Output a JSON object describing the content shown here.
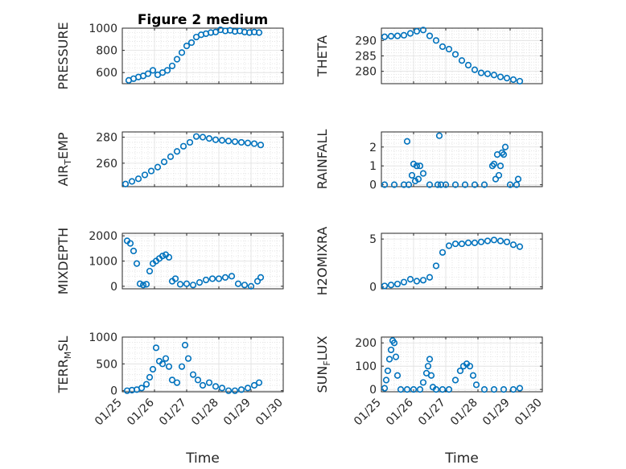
{
  "chart_data": [
    {
      "type": "scatter",
      "title": "Figure 2 medium",
      "ylabel": "PRESSURE",
      "xlabel": "",
      "xlim": [
        "01/25",
        "01/30"
      ],
      "ylim": [
        500,
        1000
      ],
      "yticks": [
        600,
        800,
        1000
      ],
      "x": [
        0.2,
        0.35,
        0.5,
        0.65,
        0.8,
        0.95,
        1.1,
        1.25,
        1.4,
        1.55,
        1.7,
        1.85,
        2.0,
        2.15,
        2.3,
        2.45,
        2.6,
        2.75,
        2.9,
        3.05,
        3.2,
        3.35,
        3.5,
        3.65,
        3.8,
        3.95,
        4.1,
        4.25
      ],
      "y": [
        530,
        545,
        560,
        570,
        590,
        620,
        580,
        600,
        620,
        660,
        720,
        780,
        840,
        870,
        920,
        940,
        950,
        960,
        965,
        985,
        975,
        980,
        970,
        975,
        965,
        960,
        965,
        960
      ]
    },
    {
      "type": "scatter",
      "title": "",
      "ylabel": "THETA",
      "xlabel": "",
      "xlim": [
        "01/25",
        "01/30"
      ],
      "ylim": [
        276,
        294
      ],
      "yticks": [
        280,
        285,
        290
      ],
      "x": [
        0.1,
        0.3,
        0.5,
        0.7,
        0.9,
        1.1,
        1.3,
        1.5,
        1.7,
        1.9,
        2.1,
        2.3,
        2.5,
        2.7,
        2.9,
        3.1,
        3.3,
        3.5,
        3.7,
        3.9,
        4.1,
        4.3
      ],
      "y": [
        291.2,
        291.4,
        291.5,
        291.7,
        292.3,
        293,
        293.4,
        291.5,
        290,
        288,
        287.2,
        285.5,
        283.5,
        282,
        280.5,
        279.5,
        279.2,
        278.8,
        278.2,
        277.8,
        277.3,
        276.8
      ]
    },
    {
      "type": "scatter",
      "title": "",
      "ylabel": "AIR_TEMP",
      "xlabel": "",
      "xlim": [
        "01/25",
        "01/30"
      ],
      "ylim": [
        242,
        284
      ],
      "yticks": [
        260,
        280
      ],
      "x": [
        0.1,
        0.3,
        0.5,
        0.7,
        0.9,
        1.1,
        1.3,
        1.5,
        1.7,
        1.9,
        2.1,
        2.3,
        2.5,
        2.7,
        2.9,
        3.1,
        3.3,
        3.5,
        3.7,
        3.9,
        4.1,
        4.3
      ],
      "y": [
        244,
        246,
        248,
        251,
        254,
        257,
        261,
        265,
        269,
        273,
        276,
        280.5,
        280,
        279,
        278,
        277.5,
        277,
        276.5,
        276,
        275.5,
        275,
        274
      ]
    },
    {
      "type": "scatter",
      "title": "",
      "ylabel": "RAINFALL",
      "xlabel": "",
      "xlim": [
        "01/25",
        "01/30"
      ],
      "ylim": [
        -0.1,
        2.8
      ],
      "yticks": [
        0,
        1,
        2
      ],
      "x": [
        0.1,
        0.4,
        0.7,
        0.8,
        0.85,
        0.95,
        1.0,
        1.05,
        1.1,
        1.15,
        1.2,
        1.3,
        1.5,
        1.75,
        1.8,
        1.85,
        2.0,
        2.3,
        2.6,
        2.9,
        3.2,
        3.45,
        3.5,
        3.55,
        3.6,
        3.65,
        3.7,
        3.75,
        3.8,
        3.85,
        4.0,
        4.2,
        4.25
      ],
      "y": [
        0,
        0,
        0,
        2.3,
        0,
        0.5,
        1.1,
        0.2,
        1.0,
        0.3,
        1.0,
        0.6,
        0,
        0,
        2.6,
        0,
        0,
        0,
        0,
        0,
        0,
        1.0,
        1.1,
        0.3,
        1.6,
        0.5,
        1.0,
        1.7,
        1.6,
        2.0,
        0,
        0,
        0.3
      ]
    },
    {
      "type": "scatter",
      "title": "",
      "ylabel": "MIXDEPTH",
      "xlabel": "",
      "xlim": [
        "01/25",
        "01/30"
      ],
      "ylim": [
        -100,
        2100
      ],
      "yticks": [
        0,
        1000,
        2000
      ],
      "x": [
        0.15,
        0.25,
        0.35,
        0.45,
        0.55,
        0.65,
        0.75,
        0.85,
        0.95,
        1.05,
        1.15,
        1.25,
        1.35,
        1.45,
        1.55,
        1.65,
        1.8,
        2.0,
        2.2,
        2.4,
        2.6,
        2.8,
        3.0,
        3.2,
        3.4,
        3.6,
        3.8,
        4.0,
        4.2,
        4.3
      ],
      "y": [
        1800,
        1700,
        1400,
        900,
        100,
        50,
        80,
        600,
        900,
        1000,
        1100,
        1200,
        1250,
        1150,
        200,
        300,
        80,
        100,
        50,
        150,
        250,
        300,
        300,
        350,
        400,
        100,
        50,
        0,
        200,
        350
      ]
    },
    {
      "type": "scatter",
      "title": "",
      "ylabel": "H2OMIXRA",
      "xlabel": "",
      "xlim": [
        "01/25",
        "01/30"
      ],
      "ylim": [
        -0.2,
        5.6
      ],
      "yticks": [
        0,
        5
      ],
      "x": [
        0.1,
        0.3,
        0.5,
        0.7,
        0.9,
        1.1,
        1.3,
        1.5,
        1.7,
        1.9,
        2.1,
        2.3,
        2.5,
        2.7,
        2.9,
        3.1,
        3.3,
        3.5,
        3.7,
        3.9,
        4.1,
        4.3
      ],
      "y": [
        0.1,
        0.2,
        0.3,
        0.5,
        0.8,
        0.6,
        0.7,
        1.0,
        2.2,
        3.6,
        4.3,
        4.5,
        4.5,
        4.6,
        4.6,
        4.7,
        4.8,
        4.9,
        4.8,
        4.7,
        4.4,
        4.2
      ]
    },
    {
      "type": "scatter",
      "title": "",
      "ylabel": "TERR_MSL",
      "xlabel": "Time",
      "xlim": [
        "01/25",
        "01/30"
      ],
      "ylim": [
        -20,
        1000
      ],
      "yticks": [
        0,
        500,
        1000
      ],
      "x": [
        0.15,
        0.3,
        0.45,
        0.6,
        0.75,
        0.85,
        0.95,
        1.05,
        1.15,
        1.25,
        1.35,
        1.45,
        1.55,
        1.7,
        1.85,
        1.95,
        2.05,
        2.2,
        2.35,
        2.5,
        2.7,
        2.9,
        3.1,
        3.3,
        3.5,
        3.7,
        3.9,
        4.1,
        4.25
      ],
      "y": [
        0,
        10,
        20,
        50,
        120,
        250,
        400,
        800,
        550,
        500,
        600,
        450,
        200,
        150,
        450,
        850,
        600,
        300,
        200,
        100,
        150,
        80,
        50,
        0,
        0,
        20,
        50,
        100,
        150
      ]
    },
    {
      "type": "scatter",
      "title": "",
      "ylabel": "SUN_FLUX",
      "xlabel": "Time",
      "xlim": [
        "01/25",
        "01/30"
      ],
      "ylim": [
        -10,
        225
      ],
      "yticks": [
        0,
        100,
        200
      ],
      "x": [
        0.1,
        0.15,
        0.2,
        0.25,
        0.3,
        0.35,
        0.4,
        0.45,
        0.5,
        0.6,
        0.8,
        1.0,
        1.2,
        1.3,
        1.4,
        1.45,
        1.5,
        1.55,
        1.6,
        1.7,
        1.9,
        2.1,
        2.3,
        2.45,
        2.55,
        2.65,
        2.75,
        2.85,
        2.95,
        3.2,
        3.5,
        3.8,
        4.1,
        4.3
      ],
      "y": [
        5,
        40,
        80,
        130,
        170,
        210,
        200,
        140,
        60,
        0,
        0,
        0,
        0,
        30,
        70,
        100,
        130,
        60,
        10,
        0,
        0,
        0,
        40,
        80,
        100,
        110,
        100,
        60,
        20,
        0,
        0,
        0,
        0,
        5
      ]
    }
  ],
  "axes": {
    "xticklabels": [
      "01/25",
      "01/26",
      "01/27",
      "01/28",
      "01/29",
      "01/30"
    ]
  },
  "colors": {
    "marker": "#0072bd",
    "axis": "#262626",
    "grid": "#dfdfdf"
  }
}
